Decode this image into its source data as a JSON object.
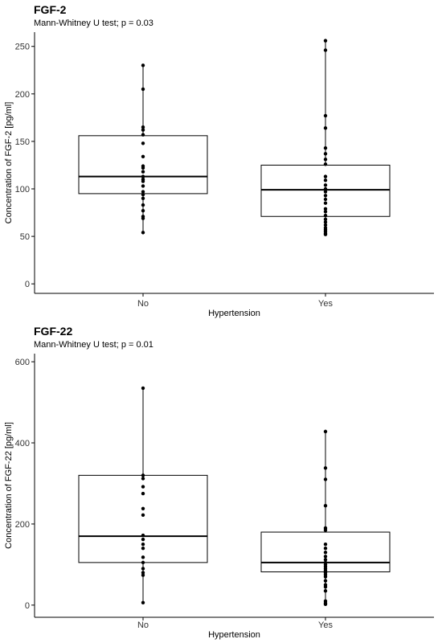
{
  "chart_data": [
    {
      "type": "box",
      "title": "FGF-2",
      "subtitle": "Mann-Whitney U test; p = 0.03",
      "xlabel": "Hypertension",
      "ylabel": "Concentration of FGF-2 [pg/ml]",
      "ylim": [
        -10,
        265
      ],
      "yticks": [
        0,
        50,
        100,
        150,
        200,
        250
      ],
      "grid": false,
      "categories": [
        "No",
        "Yes"
      ],
      "boxes": [
        {
          "category": "No",
          "whisker_low": 54,
          "q1": 95,
          "median": 113,
          "q3": 156,
          "whisker_high": 230
        },
        {
          "category": "Yes",
          "whisker_low": 52,
          "q1": 71,
          "median": 99,
          "q3": 125,
          "whisker_high": 256
        }
      ],
      "points": [
        {
          "category": "No",
          "values": [
            230,
            205,
            165,
            162,
            157,
            148,
            134,
            124,
            122,
            118,
            113,
            110,
            108,
            103,
            97,
            94,
            90,
            83,
            77,
            71,
            69,
            54
          ]
        },
        {
          "category": "Yes",
          "values": [
            256,
            246,
            177,
            164,
            143,
            137,
            131,
            126,
            113,
            109,
            104,
            100,
            97,
            93,
            89,
            85,
            79,
            76,
            72,
            68,
            65,
            62,
            59,
            57,
            55,
            53,
            52
          ]
        }
      ]
    },
    {
      "type": "box",
      "title": "FGF-22",
      "subtitle": "Mann-Whitney U test; p = 0.01",
      "xlabel": "Hypertension",
      "ylabel": "Concentration of FGF-22 [pg/ml]",
      "ylim": [
        -30,
        620
      ],
      "yticks": [
        0,
        200,
        400,
        600
      ],
      "grid": false,
      "categories": [
        "No",
        "Yes"
      ],
      "boxes": [
        {
          "category": "No",
          "whisker_low": 6,
          "q1": 105,
          "median": 170,
          "q3": 320,
          "whisker_high": 535
        },
        {
          "category": "Yes",
          "whisker_low": 2,
          "q1": 82,
          "median": 105,
          "q3": 180,
          "whisker_high": 428
        }
      ],
      "points": [
        {
          "category": "No",
          "values": [
            535,
            320,
            312,
            292,
            275,
            238,
            222,
            172,
            162,
            150,
            140,
            118,
            105,
            90,
            80,
            74,
            6
          ]
        },
        {
          "category": "Yes",
          "values": [
            428,
            338,
            310,
            245,
            190,
            185,
            150,
            140,
            130,
            120,
            112,
            105,
            100,
            95,
            90,
            85,
            80,
            75,
            70,
            60,
            50,
            45,
            35,
            10,
            5,
            2
          ]
        }
      ]
    }
  ]
}
